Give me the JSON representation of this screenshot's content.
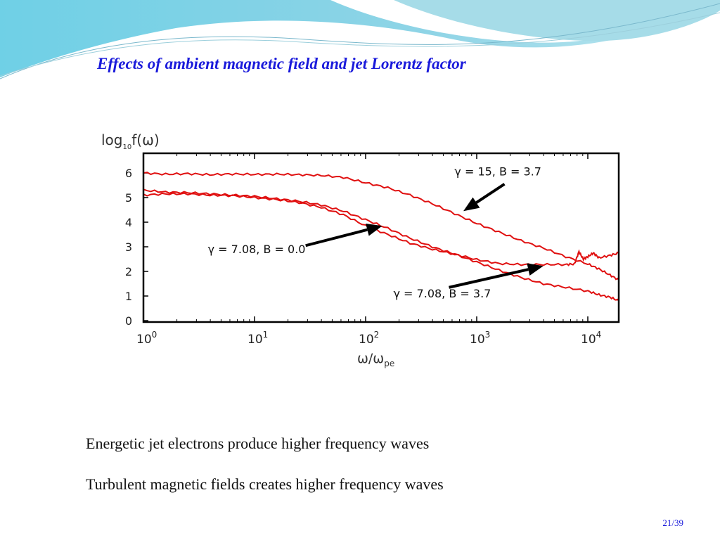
{
  "slide": {
    "title": "Effects of ambient magnetic field and jet Lorentz factor",
    "bullets": [
      "Energetic jet electrons produce higher frequency waves",
      "Turbulent magnetic fields creates higher frequency waves"
    ],
    "page_number": "21/39"
  },
  "colors": {
    "title": "#1a1adb",
    "series": "#e01010",
    "header_wave": "#7fd3e3"
  },
  "chart_data": {
    "type": "line",
    "ylabel_main": "log",
    "ylabel_sub": "10",
    "ylabel_tail": "f(ω)",
    "xlabel_main": "ω/ω",
    "xlabel_sub": "pe",
    "x_scale": "log10",
    "xlim_log10": [
      0,
      4.28
    ],
    "ylim": [
      0,
      6.8
    ],
    "x_ticks": [
      {
        "base": "10",
        "exp": "0"
      },
      {
        "base": "10",
        "exp": "1"
      },
      {
        "base": "10",
        "exp": "2"
      },
      {
        "base": "10",
        "exp": "3"
      },
      {
        "base": "10",
        "exp": "4"
      }
    ],
    "y_ticks": [
      "0",
      "1",
      "2",
      "3",
      "4",
      "5",
      "6"
    ],
    "series": [
      {
        "name": "γ = 15,  B = 3.7",
        "log10_x": [
          0,
          0.2,
          0.4,
          0.6,
          0.8,
          1.0,
          1.2,
          1.4,
          1.6,
          1.8,
          2.0,
          2.2,
          2.4,
          2.6,
          2.8,
          3.0,
          3.2,
          3.4,
          3.6,
          3.8,
          4.0,
          4.1,
          4.2,
          4.28
        ],
        "y": [
          6.0,
          5.95,
          5.97,
          5.93,
          5.96,
          5.94,
          5.95,
          5.93,
          5.9,
          5.82,
          5.6,
          5.4,
          5.1,
          4.75,
          4.35,
          3.95,
          3.6,
          3.25,
          2.95,
          2.6,
          2.3,
          2.1,
          1.85,
          1.65
        ]
      },
      {
        "name": "γ = 7.08,  B = 0.0",
        "log10_x": [
          0,
          0.2,
          0.4,
          0.6,
          0.8,
          1.0,
          1.2,
          1.4,
          1.6,
          1.8,
          2.0,
          2.2,
          2.4,
          2.6,
          2.8,
          3.0,
          3.2,
          3.4,
          3.6,
          3.8,
          4.0,
          4.1,
          4.2,
          4.28
        ],
        "y": [
          5.3,
          5.22,
          5.2,
          5.15,
          5.1,
          5.05,
          4.95,
          4.85,
          4.7,
          4.45,
          4.1,
          3.75,
          3.35,
          3.0,
          2.7,
          2.38,
          2.05,
          1.75,
          1.5,
          1.35,
          1.2,
          1.05,
          0.95,
          0.8
        ]
      },
      {
        "name": "γ = 7.08,  B = 3.7",
        "log10_x": [
          0,
          0.2,
          0.4,
          0.6,
          0.8,
          1.0,
          1.2,
          1.4,
          1.6,
          1.8,
          2.0,
          2.2,
          2.4,
          2.6,
          2.8,
          3.0,
          3.2,
          3.4,
          3.6,
          3.8,
          3.88,
          3.92,
          3.96,
          4.0,
          4.05,
          4.1,
          4.2,
          4.28
        ],
        "y": [
          5.1,
          5.15,
          5.15,
          5.1,
          5.08,
          5.0,
          4.92,
          4.8,
          4.6,
          4.3,
          3.85,
          3.5,
          3.15,
          2.9,
          2.7,
          2.48,
          2.32,
          2.28,
          2.28,
          2.28,
          2.3,
          2.8,
          2.5,
          2.6,
          2.75,
          2.55,
          2.65,
          2.75
        ]
      }
    ],
    "annotations": [
      {
        "text": "γ = 15,  B = 3.7",
        "label_log10_x": 2.8,
        "label_y": 5.9,
        "arrow_from": [
          3.25,
          5.55
        ],
        "arrow_to": [
          2.88,
          4.45
        ]
      },
      {
        "text": "γ = 7.08,  B = 0.0",
        "label_log10_x": 0.58,
        "label_y": 2.75,
        "arrow_from": [
          1.46,
          3.05
        ],
        "arrow_to": [
          2.15,
          3.85
        ]
      },
      {
        "text": "γ = 7.08,  B = 3.7",
        "label_log10_x": 2.25,
        "label_y": 0.95,
        "arrow_from": [
          2.75,
          1.35
        ],
        "arrow_to": [
          3.6,
          2.22
        ]
      }
    ]
  }
}
